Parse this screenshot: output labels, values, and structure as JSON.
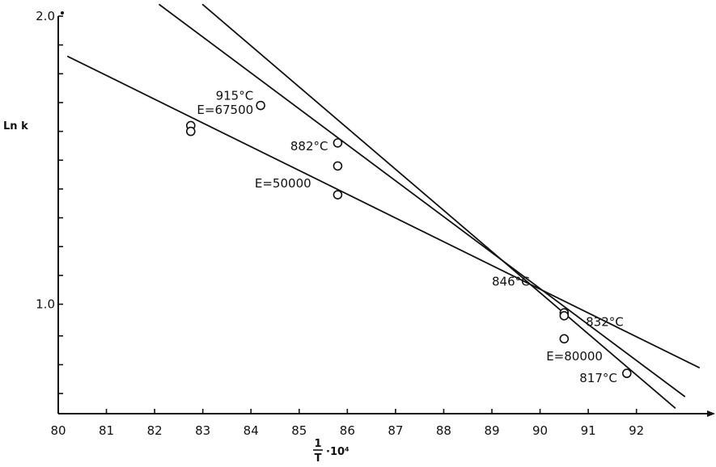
{
  "chart_data": {
    "type": "scatter",
    "title": "",
    "ylabel": "Ln k",
    "xlabel": {
      "frac_num": "1",
      "frac_den": "T",
      "suffix": "·10⁴"
    },
    "xlim": [
      80,
      93.5
    ],
    "ylim": [
      0.62,
      2.0
    ],
    "x_ticks": [
      80,
      81,
      82,
      83,
      84,
      85,
      86,
      87,
      88,
      89,
      90,
      91,
      92
    ],
    "x_tick_labels": [
      "80",
      "81",
      "82",
      "83",
      "84",
      "85",
      "86",
      "87",
      "88",
      "89",
      "90",
      "91",
      "92"
    ],
    "y_ticks": [
      0.69,
      0.79,
      0.89,
      1.0,
      1.1,
      1.2,
      1.3,
      1.4,
      1.5,
      1.6,
      1.7,
      1.8,
      1.9,
      2.0
    ],
    "y_tick_labels": [
      {
        "value": 2.0,
        "text": "2.0"
      },
      {
        "value": 1.0,
        "text": "1.0"
      }
    ],
    "grid": false,
    "points": [
      {
        "x": 82.75,
        "y": 1.62
      },
      {
        "x": 82.75,
        "y": 1.6
      },
      {
        "x": 84.2,
        "y": 1.69
      },
      {
        "x": 85.8,
        "y": 1.56
      },
      {
        "x": 85.8,
        "y": 1.48
      },
      {
        "x": 85.8,
        "y": 1.38
      },
      {
        "x": 90.5,
        "y": 0.97
      },
      {
        "x": 90.5,
        "y": 0.96
      },
      {
        "x": 90.5,
        "y": 0.88
      },
      {
        "x": 91.8,
        "y": 0.76
      }
    ],
    "lines": [
      {
        "label": "E=50000",
        "x1": 80.2,
        "y1": 1.86,
        "x2": 93.3,
        "y2": 0.78
      },
      {
        "label": "E=67500",
        "x1": 82.1,
        "y1": 2.04,
        "x2": 93.0,
        "y2": 0.68
      },
      {
        "label": "E=80000",
        "x1": 83.0,
        "y1": 2.04,
        "x2": 92.8,
        "y2": 0.64
      }
    ],
    "annotations": [
      {
        "text": "915°C",
        "x": 84.05,
        "y": 1.71,
        "anchor": "end"
      },
      {
        "text": "E=67500",
        "x": 84.05,
        "y": 1.66,
        "anchor": "end"
      },
      {
        "text": "882°C",
        "x": 85.6,
        "y": 1.535,
        "anchor": "end"
      },
      {
        "text": "E=50000",
        "x": 85.25,
        "y": 1.405,
        "anchor": "end"
      },
      {
        "text": "846°C",
        "x": 89.0,
        "y": 1.065,
        "anchor": "start"
      },
      {
        "text": "832°C",
        "x": 90.95,
        "y": 0.925,
        "anchor": "start"
      },
      {
        "text": "E=80000",
        "x": 91.3,
        "y": 0.805,
        "anchor": "end"
      },
      {
        "text": "817°C",
        "x": 91.6,
        "y": 0.73,
        "anchor": "end"
      }
    ]
  }
}
